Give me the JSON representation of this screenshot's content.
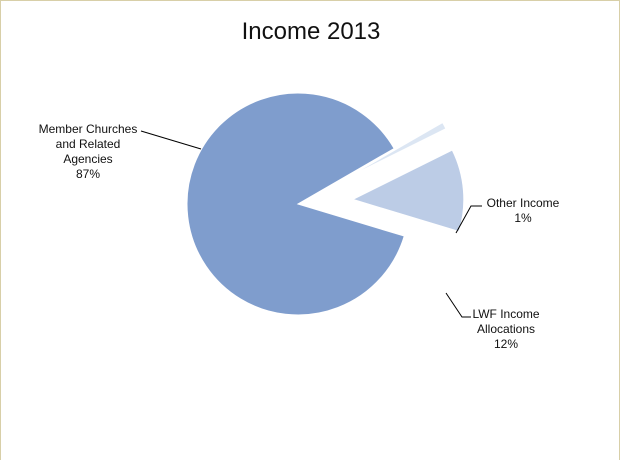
{
  "chart_data": {
    "type": "pie",
    "title": "Income 2013",
    "categories": [
      "Member Churches and Related Agencies",
      "Other Income",
      "LWF Income Allocations"
    ],
    "values": [
      87,
      1,
      12
    ],
    "slices": [
      {
        "label_lines": [
          "Member Churches",
          "and Related",
          "Agencies"
        ],
        "pct_label": "87%",
        "value": 87,
        "color": "#7f9dcd"
      },
      {
        "label_lines": [
          "Other Income"
        ],
        "pct_label": "1%",
        "value": 1,
        "color": "#dce6f3"
      },
      {
        "label_lines": [
          "LWF Income",
          "Allocations"
        ],
        "pct_label": "12%",
        "value": 12,
        "color": "#bccce6"
      }
    ],
    "exploded": [
      "Other Income",
      "LWF Income Allocations"
    ],
    "legend": "none",
    "data_labels": "category name and percentage, outside with leader lines"
  }
}
